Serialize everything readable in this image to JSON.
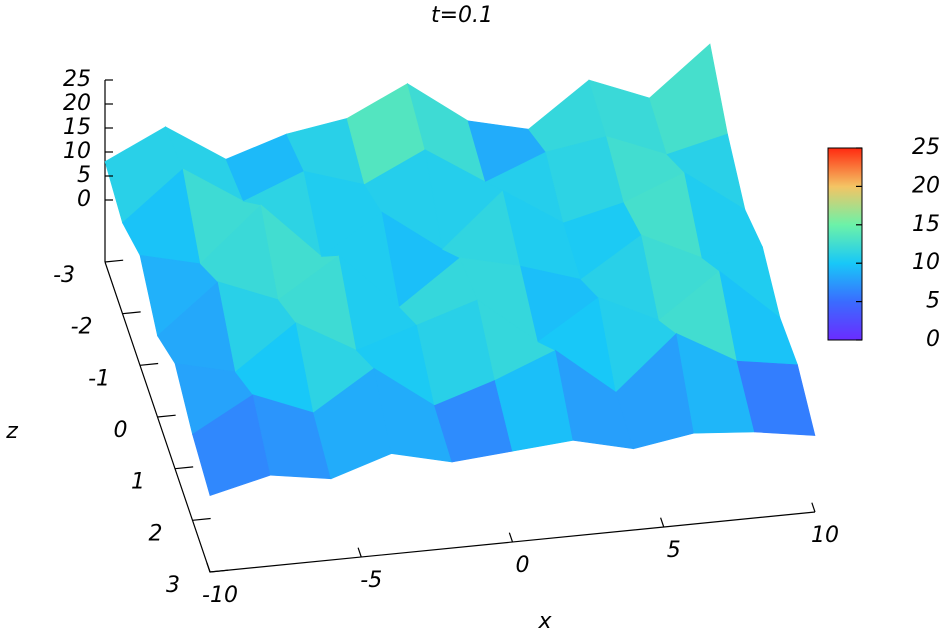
{
  "chart_data": {
    "type": "surface",
    "title": "t=0.1",
    "xlabel": "x",
    "zlabel": "z",
    "x": [
      -10,
      -8,
      -6,
      -4,
      -2,
      0,
      2,
      4,
      6,
      8,
      10
    ],
    "z": [
      -3,
      -2,
      -1,
      0,
      1,
      2,
      3
    ],
    "values": [
      [
        8,
        14,
        6,
        10,
        12,
        18,
        9,
        6,
        15,
        10,
        20
      ],
      [
        6,
        16,
        8,
        13,
        9,
        15,
        7,
        12,
        14,
        9,
        12
      ],
      [
        10,
        7,
        18,
        6,
        14,
        5,
        16,
        8,
        11,
        16,
        7
      ],
      [
        4,
        14,
        9,
        17,
        5,
        14,
        11,
        7,
        15,
        9,
        10
      ],
      [
        9,
        6,
        15,
        8,
        12,
        16,
        6,
        14,
        8,
        17,
        6
      ],
      [
        5,
        12,
        7,
        15,
        6,
        10,
        15,
        5,
        16,
        9,
        7
      ],
      [
        3,
        6,
        4,
        8,
        5,
        6,
        7,
        4,
        6,
        5,
        3
      ]
    ],
    "xlim": [
      -10,
      10
    ],
    "xticks": [
      -10,
      -5,
      0,
      5,
      10
    ],
    "zlim": [
      -3,
      3
    ],
    "zticks": [
      -3,
      -2,
      -1,
      0,
      1,
      2,
      3
    ],
    "hlim": [
      0,
      25
    ],
    "hticks": [
      0,
      5,
      10,
      15,
      20,
      25
    ],
    "clim": [
      0,
      25
    ],
    "cbticks": [
      0,
      5,
      10,
      15,
      20,
      25
    ],
    "colormap": [
      "#6a2cff",
      "#3a6cff",
      "#18c8f8",
      "#6cf2a8",
      "#f4c464",
      "#ff2a10"
    ]
  }
}
